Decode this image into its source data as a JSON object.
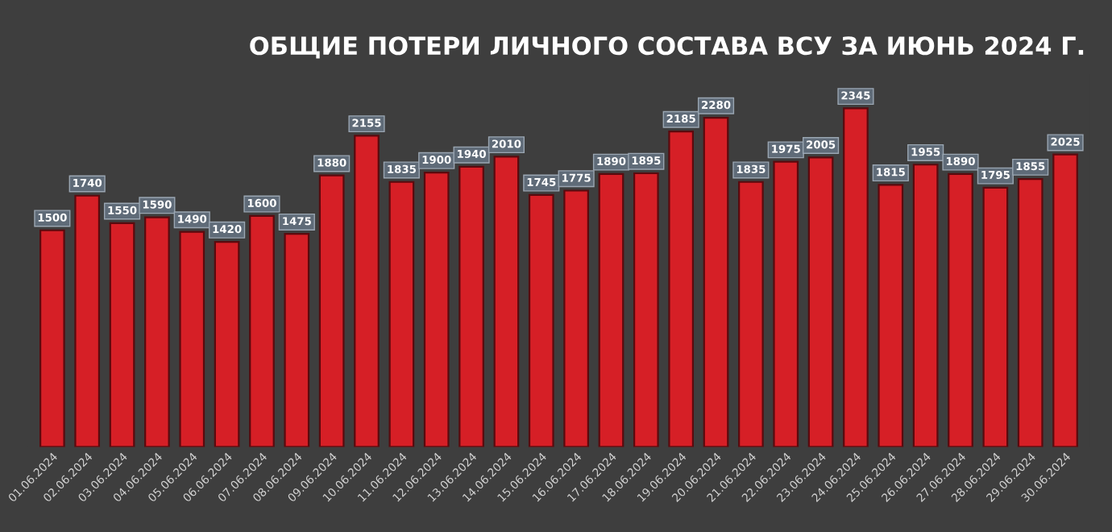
{
  "chart_data": {
    "type": "bar",
    "title": "ОБЩИЕ ПОТЕРИ ЛИЧНОГО СОСТАВА ВСУ ЗА ИЮНЬ 2024 Г.",
    "categories": [
      "01.06.2024",
      "02.06.2024",
      "03.06.2024",
      "04.06.2024",
      "05.06.2024",
      "06.06.2024",
      "07.06.2024",
      "08.06.2024",
      "09.06.2024",
      "10.06.2024",
      "11.06.2024",
      "12.06.2024",
      "13.06.2024",
      "14.06.2024",
      "15.06.2024",
      "16.06.2024",
      "17.06.2024",
      "18.06.2024",
      "19.06.2024",
      "20.06.2024",
      "21.06.2024",
      "22.06.2024",
      "23.06.2024",
      "24.06.2024",
      "25.06.2024",
      "26.06.2024",
      "27.06.2024",
      "28.06.2024",
      "29.06.2024",
      "30.06.2024"
    ],
    "values": [
      1500,
      1740,
      1550,
      1590,
      1490,
      1420,
      1600,
      1475,
      1880,
      2155,
      1835,
      1900,
      1940,
      2010,
      1745,
      1775,
      1890,
      1895,
      2185,
      2280,
      1835,
      1975,
      2005,
      2345,
      1815,
      1955,
      1890,
      1795,
      1855,
      2025
    ],
    "color": "#d61f26",
    "data_labels": true,
    "grid": false,
    "legend": false
  }
}
